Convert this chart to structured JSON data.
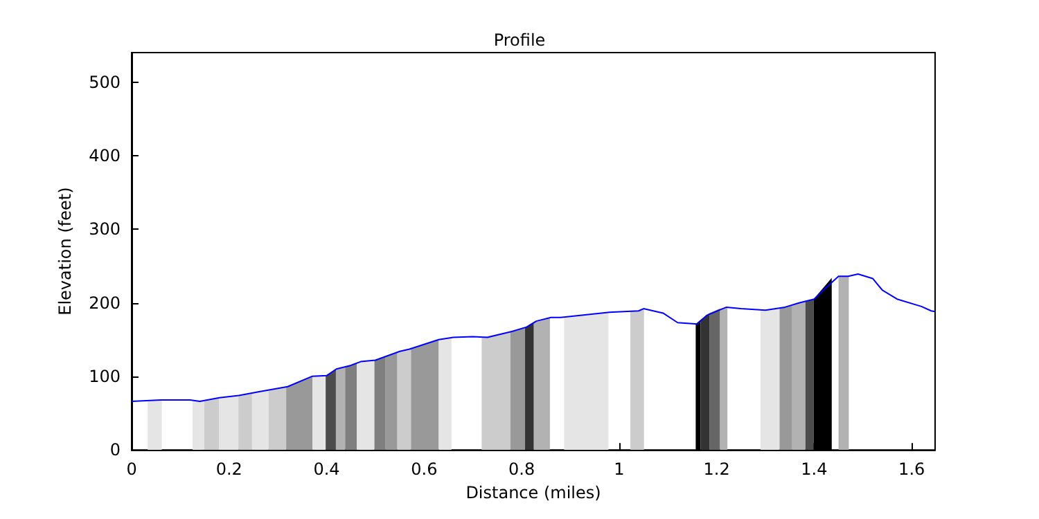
{
  "chart_data": {
    "type": "line",
    "title": "Profile",
    "xlabel": "Distance (miles)",
    "ylabel": "Elevation (feet)",
    "xlim": [
      0,
      1.648
    ],
    "ylim": [
      0,
      540
    ],
    "xticks": [
      0,
      0.2,
      0.4,
      0.6,
      0.8,
      1,
      1.2,
      1.4,
      1.6
    ],
    "yticks": [
      0,
      100,
      200,
      300,
      400,
      500
    ],
    "grid": false,
    "marker": "none",
    "line_style": "solid",
    "series": [
      {
        "type": "area",
        "color": "#e5e5e5",
        "x": [
          0.033,
          0.062
        ],
        "values": [
          67,
          68
        ]
      },
      {
        "type": "area",
        "color": "#e5e5e5",
        "x": [
          0.125,
          0.149
        ],
        "values": [
          67,
          68
        ]
      },
      {
        "type": "area",
        "color": "#cccccc",
        "x": [
          0.149,
          0.179
        ],
        "values": [
          68,
          71
        ]
      },
      {
        "type": "area",
        "color": "#e5e5e5",
        "x": [
          0.179,
          0.219
        ],
        "values": [
          71,
          74
        ]
      },
      {
        "type": "area",
        "color": "#cccccc",
        "x": [
          0.219,
          0.247
        ],
        "values": [
          74,
          77
        ]
      },
      {
        "type": "area",
        "color": "#e5e5e5",
        "x": [
          0.247,
          0.281
        ],
        "values": [
          77,
          81
        ]
      },
      {
        "type": "area",
        "color": "#cccccc",
        "x": [
          0.281,
          0.317
        ],
        "values": [
          81,
          85
        ]
      },
      {
        "type": "area",
        "color": "#999999",
        "x": [
          0.317,
          0.371
        ],
        "values": [
          85,
          100
        ]
      },
      {
        "type": "area",
        "color": "#e5e5e5",
        "x": [
          0.371,
          0.398
        ],
        "values": [
          100,
          101
        ]
      },
      {
        "type": "area",
        "color": "#4c4c4c",
        "x": [
          0.398,
          0.419
        ],
        "values": [
          101,
          109
        ]
      },
      {
        "type": "area",
        "color": "#b2b2b2",
        "x": [
          0.419,
          0.438
        ],
        "values": [
          109,
          113
        ]
      },
      {
        "type": "area",
        "color": "#7f7f7f",
        "x": [
          0.438,
          0.462
        ],
        "values": [
          113,
          118
        ]
      },
      {
        "type": "area",
        "color": "#e5e5e5",
        "x": [
          0.462,
          0.498
        ],
        "values": [
          118,
          122
        ]
      },
      {
        "type": "area",
        "color": "#7f7f7f",
        "x": [
          0.498,
          0.521
        ],
        "values": [
          122,
          127
        ]
      },
      {
        "type": "area",
        "color": "#999999",
        "x": [
          0.521,
          0.545
        ],
        "values": [
          127,
          133
        ]
      },
      {
        "type": "area",
        "color": "#cccccc",
        "x": [
          0.545,
          0.573
        ],
        "values": [
          133,
          138
        ]
      },
      {
        "type": "area",
        "color": "#999999",
        "x": [
          0.573,
          0.63
        ],
        "values": [
          138,
          150
        ]
      },
      {
        "type": "area",
        "color": "#e5e5e5",
        "x": [
          0.63,
          0.656
        ],
        "values": [
          150,
          153
        ]
      },
      {
        "type": "area",
        "color": "#cccccc",
        "x": [
          0.718,
          0.777
        ],
        "values": [
          153,
          161
        ]
      },
      {
        "type": "area",
        "color": "#999999",
        "x": [
          0.777,
          0.807
        ],
        "values": [
          161,
          166
        ]
      },
      {
        "type": "area",
        "color": "#333333",
        "x": [
          0.807,
          0.825
        ],
        "values": [
          166,
          173
        ]
      },
      {
        "type": "area",
        "color": "#b2b2b2",
        "x": [
          0.825,
          0.858
        ],
        "values": [
          173,
          179
        ]
      },
      {
        "type": "area",
        "color": "#e5e5e5",
        "x": [
          0.887,
          0.978
        ],
        "values": [
          180,
          187
        ]
      },
      {
        "type": "area",
        "color": "#cccccc",
        "x": [
          1.023,
          1.051
        ],
        "values": [
          188,
          191
        ]
      },
      {
        "type": "area",
        "color": "#000000",
        "x": [
          1.157,
          1.167
        ],
        "values": [
          171,
          177
        ]
      },
      {
        "type": "area",
        "color": "#333333",
        "x": [
          1.167,
          1.185
        ],
        "values": [
          177,
          186
        ]
      },
      {
        "type": "area",
        "color": "#666666",
        "x": [
          1.185,
          1.207
        ],
        "values": [
          186,
          192
        ]
      },
      {
        "type": "area",
        "color": "#b2b2b2",
        "x": [
          1.207,
          1.222
        ],
        "values": [
          192,
          194
        ]
      },
      {
        "type": "area",
        "color": "#e5e5e5",
        "x": [
          1.29,
          1.329
        ],
        "values": [
          190,
          193
        ]
      },
      {
        "type": "area",
        "color": "#999999",
        "x": [
          1.329,
          1.355
        ],
        "values": [
          193,
          197
        ]
      },
      {
        "type": "area",
        "color": "#b2b2b2",
        "x": [
          1.355,
          1.382
        ],
        "values": [
          197,
          202
        ]
      },
      {
        "type": "area",
        "color": "#4c4c4c",
        "x": [
          1.382,
          1.399
        ],
        "values": [
          202,
          205
        ]
      },
      {
        "type": "area",
        "color": "#000000",
        "x": [
          1.399,
          1.436
        ],
        "values": [
          205,
          234
        ]
      },
      {
        "type": "area",
        "color": "#b2b2b2",
        "x": [
          1.45,
          1.471
        ],
        "values": [
          236,
          237
        ]
      },
      {
        "color": "#0000ff",
        "x": [
          0,
          0.06,
          0.12,
          0.14,
          0.18,
          0.22,
          0.26,
          0.32,
          0.37,
          0.4,
          0.42,
          0.45,
          0.47,
          0.5,
          0.55,
          0.57,
          0.63,
          0.66,
          0.7,
          0.73,
          0.78,
          0.81,
          0.83,
          0.86,
          0.88,
          0.98,
          1.04,
          1.05,
          1.09,
          1.12,
          1.16,
          1.18,
          1.22,
          1.25,
          1.3,
          1.34,
          1.37,
          1.4,
          1.42,
          1.45,
          1.47,
          1.49,
          1.52,
          1.54,
          1.57,
          1.62,
          1.64,
          1.648
        ],
        "values": [
          66,
          68,
          68,
          66,
          71,
          74,
          79,
          86,
          100,
          101,
          110,
          115,
          120,
          122,
          134,
          137,
          150,
          153,
          154,
          153,
          161,
          167,
          175,
          180,
          180,
          187,
          189,
          192,
          186,
          173,
          171,
          183,
          194,
          192,
          190,
          194,
          200,
          205,
          218,
          236,
          236,
          239,
          233,
          217,
          205,
          195,
          189,
          188
        ]
      }
    ]
  }
}
